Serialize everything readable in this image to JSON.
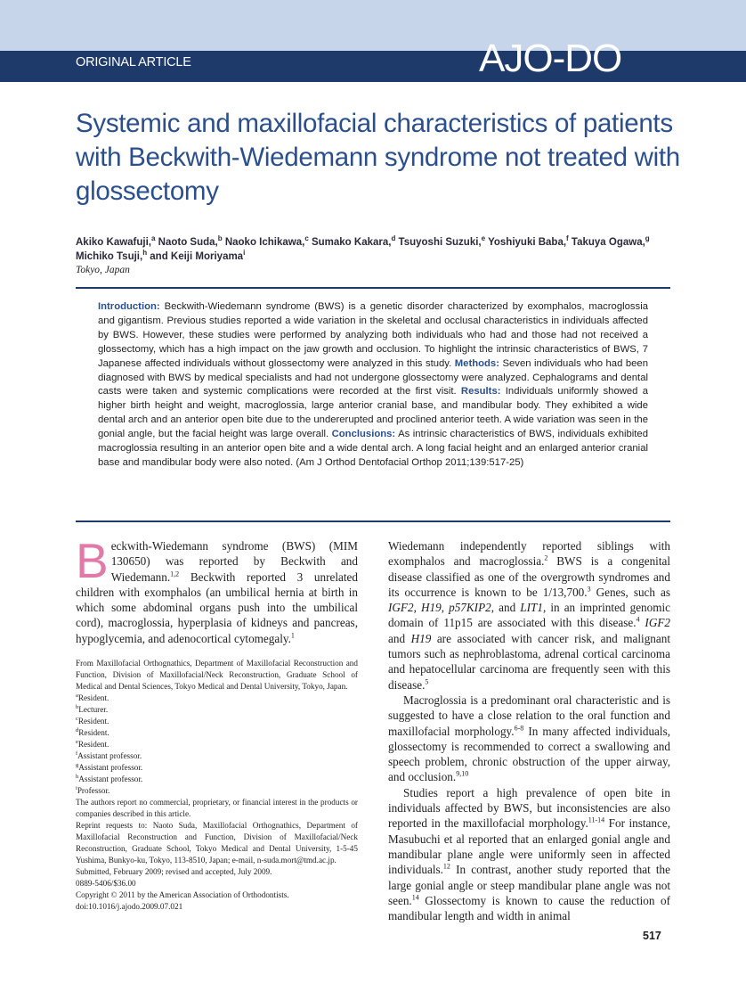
{
  "header": {
    "section": "ORIGINAL ARTICLE",
    "journal": "AJO-DO"
  },
  "article": {
    "title": "Systemic and maxillofacial characteristics of patients with Beckwith-Wiedemann syndrome not treated with glossectomy",
    "authors": [
      {
        "text": "Akiko Kawafuji,"
      },
      {
        "sup": "a"
      },
      {
        "text": " Naoto Suda,"
      },
      {
        "sup": "b"
      },
      {
        "text": " Naoko Ichikawa,"
      },
      {
        "sup": "c"
      },
      {
        "text": " Sumako Kakara,"
      },
      {
        "sup": "d"
      },
      {
        "text": " Tsuyoshi Suzuki,"
      },
      {
        "sup": "e"
      },
      {
        "text": " Yoshiyuki Baba,"
      },
      {
        "sup": "f"
      },
      {
        "text": " Takuya Ogawa,"
      },
      {
        "sup": "g"
      },
      {
        "text": " Michiko Tsuji,"
      },
      {
        "sup": "h"
      },
      {
        "text": " and Keiji Moriyama"
      },
      {
        "sup": "i"
      }
    ],
    "location": "Tokyo, Japan",
    "abstract": [
      {
        "bold": "Introduction:"
      },
      {
        "text": " Beckwith-Wiedemann syndrome (BWS) is a genetic disorder characterized by exomphalos, macroglossia and gigantism. Previous studies reported a wide variation in the skeletal and occlusal characteristics in individuals affected by BWS. However, these studies were performed by analyzing both individuals who had and those had not received a glossectomy, which has a high impact on the jaw growth and occlusion. To highlight the intrinsic characteristics of BWS, 7 Japanese affected individuals without glossectomy were analyzed in this study. "
      },
      {
        "bold": "Methods:"
      },
      {
        "text": " Seven individuals who had been diagnosed with BWS by medical specialists and had not undergone glossectomy were analyzed. Cephalograms and dental casts were taken and systemic complications were recorded at the first visit. "
      },
      {
        "bold": "Results:"
      },
      {
        "text": " Individuals uniformly showed a higher birth height and weight, macroglossia, large anterior cranial base, and mandibular body. They exhibited a wide dental arch and an anterior open bite due to the undererupted and proclined anterior teeth. A wide variation was seen in the gonial angle, but the facial height was large overall. "
      },
      {
        "bold": "Conclusions:"
      },
      {
        "text": " As intrinsic characteristics of BWS, individuals exhibited macroglossia resulting in an anterior open bite and a wide dental arch. A long facial height and an enlarged anterior cranial base and mandibular body were also noted. (Am J Orthod Dentofacial Orthop 2011;139:517-25)"
      }
    ],
    "left_paragraphs": [
      [
        {
          "dropcap": "B"
        },
        {
          "text": "eckwith-Wiedemann syndrome (BWS) (MIM 130650) was reported by Beckwith and Wiedemann."
        },
        {
          "sup": "1,2"
        },
        {
          "text": " Beckwith reported 3 unrelated children with exomphalos (an umbilical hernia at birth in which some abdominal organs push into the umbilical cord), macroglossia, hyperplasia of kidneys and pancreas, hypoglycemia, and adenocortical cytomegaly."
        },
        {
          "sup": "1"
        }
      ]
    ],
    "footnotes": [
      [
        {
          "text": "From Maxillofacial Orthognathics, Department of Maxillofacial Reconstruction and Function, Division of Maxillofacial/Neck Reconstruction, Graduate School of Medical and Dental Sciences, Tokyo Medical and Dental University, Tokyo, Japan."
        }
      ],
      [
        {
          "sup": "a"
        },
        {
          "text": "Resident."
        }
      ],
      [
        {
          "sup": "b"
        },
        {
          "text": "Lecturer."
        }
      ],
      [
        {
          "sup": "c"
        },
        {
          "text": "Resident."
        }
      ],
      [
        {
          "sup": "d"
        },
        {
          "text": "Resident."
        }
      ],
      [
        {
          "sup": "e"
        },
        {
          "text": "Resident."
        }
      ],
      [
        {
          "sup": "f"
        },
        {
          "text": "Assistant professor."
        }
      ],
      [
        {
          "sup": "g"
        },
        {
          "text": "Assistant professor."
        }
      ],
      [
        {
          "sup": "h"
        },
        {
          "text": "Assistant professor."
        }
      ],
      [
        {
          "sup": "i"
        },
        {
          "text": "Professor."
        }
      ],
      [
        {
          "text": "The authors report no commercial, proprietary, or financial interest in the products or companies described in this article."
        }
      ],
      [
        {
          "text": "Reprint requests to: Naoto Suda, Maxillofacial Orthognathics, Department of Maxillofacial Reconstruction and Function, Division of Maxillofacial/Neck Reconstruction, Graduate School, Tokyo Medical and Dental University, 1-5-45 Yushima, Bunkyo-ku, Tokyo, 113-8510, Japan; e-mail, n-suda.mort@tmd.ac.jp."
        }
      ],
      [
        {
          "text": "Submitted, February 2009; revised and accepted, July 2009."
        }
      ],
      [
        {
          "text": "0889-5406/$36.00"
        }
      ],
      [
        {
          "text": "Copyright © 2011 by the American Association of Orthodontists."
        }
      ],
      [
        {
          "text": "doi:10.1016/j.ajodo.2009.07.021"
        }
      ]
    ],
    "right_paragraphs": [
      [
        {
          "text": "Wiedemann independently reported siblings with exomphalos and macroglossia."
        },
        {
          "sup": "2"
        },
        {
          "text": " BWS is a congenital disease classified as one of the overgrowth syndromes and its occurrence is known to be 1/13,700."
        },
        {
          "sup": "3"
        },
        {
          "text": " Genes, such as "
        },
        {
          "italic": "IGF2"
        },
        {
          "text": ", "
        },
        {
          "italic": "H19"
        },
        {
          "text": ", "
        },
        {
          "italic": "p57KIP2"
        },
        {
          "text": ", and "
        },
        {
          "italic": "LIT1"
        },
        {
          "text": ", in an imprinted genomic domain of 11p15 are associated with this disease."
        },
        {
          "sup": "4"
        },
        {
          "text": " "
        },
        {
          "italic": "IGF2"
        },
        {
          "text": " and "
        },
        {
          "italic": "H19"
        },
        {
          "text": " are associated with cancer risk, and malignant tumors such as nephroblastoma, adrenal cortical carcinoma and hepatocellular carcinoma are frequently seen with this disease."
        },
        {
          "sup": "5"
        }
      ],
      [
        {
          "text": "Macroglossia is a predominant oral characteristic and is suggested to have a close relation to the oral function and maxillofacial morphology."
        },
        {
          "sup": "6-8"
        },
        {
          "text": " In many affected individuals, glossectomy is recommended to correct a swallowing and speech problem, chronic obstruction of the upper airway, and occlusion."
        },
        {
          "sup": "9,10"
        }
      ],
      [
        {
          "text": "Studies report a high prevalence of open bite in individuals affected by BWS, but inconsistencies are also reported in the maxillofacial morphology."
        },
        {
          "sup": "11-14"
        },
        {
          "text": " For instance, Masubuchi et al reported that an enlarged gonial angle and mandibular plane angle were uniformly seen in affected individuals."
        },
        {
          "sup": "12"
        },
        {
          "text": " In contrast, another study reported that the large gonial angle or steep mandibular plane angle was not seen."
        },
        {
          "sup": "14"
        },
        {
          "text": " Glossectomy is known to cause the reduction of mandibular length and width in animal"
        }
      ]
    ],
    "page_number": "517"
  }
}
